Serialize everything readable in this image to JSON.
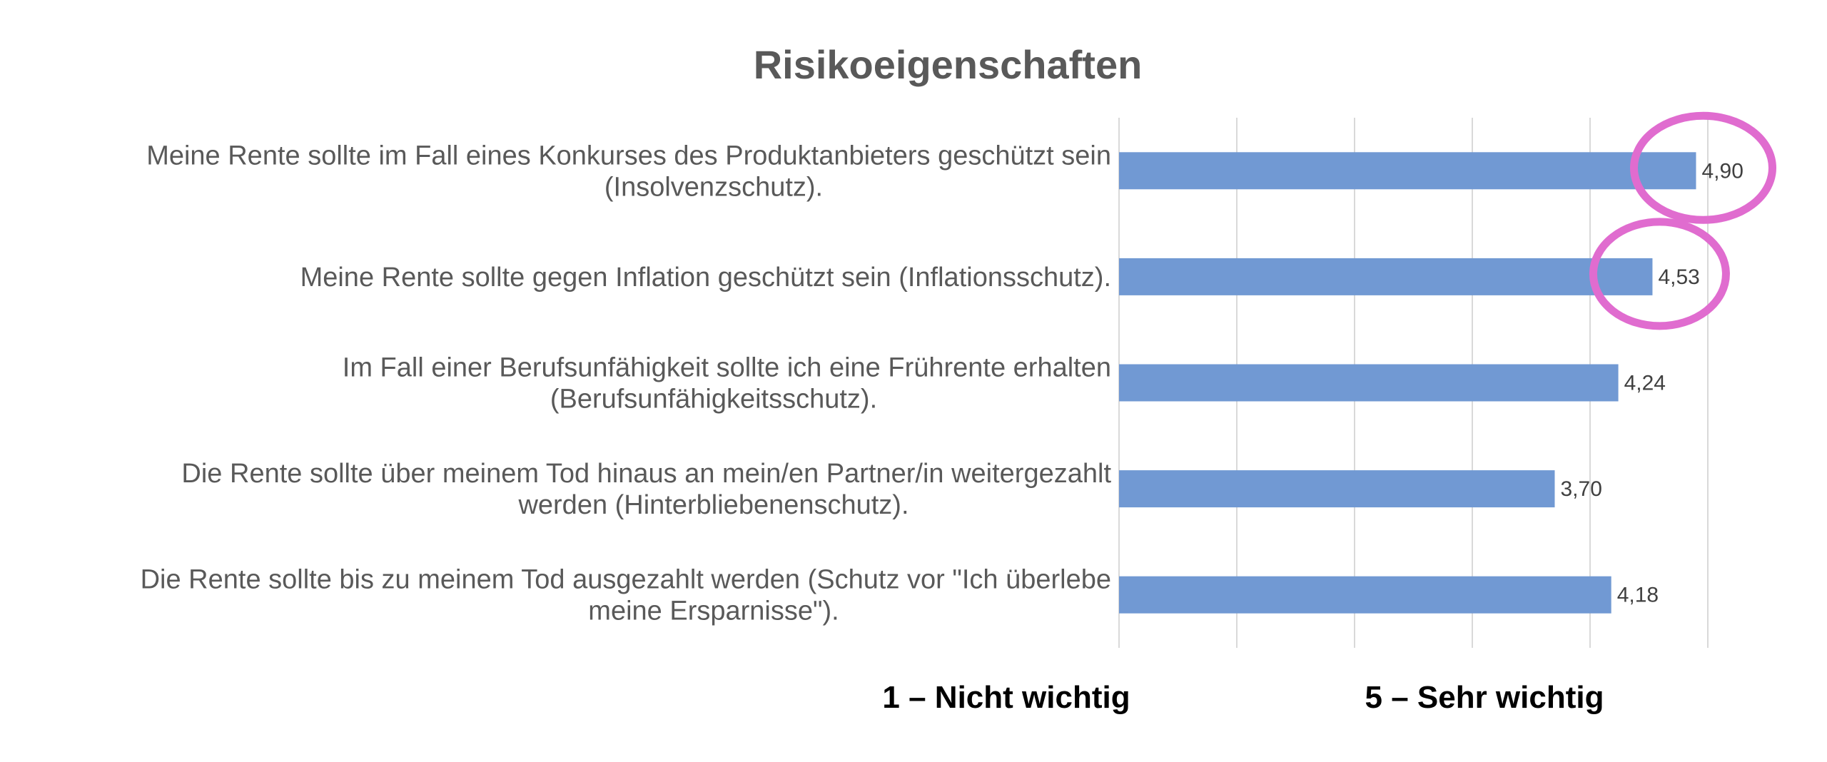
{
  "chart_data": {
    "type": "bar",
    "orientation": "horizontal",
    "title": "Risikoeigenschaften",
    "categories": [
      [
        "Meine Rente sollte im Fall eines Konkurses des Produktanbieters geschützt sein",
        "(Insolvenzschutz)."
      ],
      [
        "Meine Rente sollte gegen Inflation geschützt sein (Inflationsschutz)."
      ],
      [
        "Im Fall einer Berufsunfähigkeit sollte ich eine Frührente erhalten",
        "(Berufsunfähigkeitsschutz)."
      ],
      [
        "Die Rente sollte über meinem Tod hinaus an mein/en Partner/in weitergezahlt",
        "werden (Hinterbliebenenschutz)."
      ],
      [
        "Die Rente sollte bis zu meinem Tod ausgezahlt werden (Schutz vor \"Ich überlebe",
        "meine Ersparnisse\")."
      ]
    ],
    "values": [
      4.9,
      4.53,
      4.24,
      3.7,
      4.18
    ],
    "data_labels": [
      "4,90",
      "4,53",
      "4,24",
      "3,70",
      "4,18"
    ],
    "xlim": [
      0,
      5
    ],
    "grid": true,
    "bar_color": "#7199d3",
    "scale_labels": {
      "low": "1 – Nicht wichtig",
      "high": "5 – Sehr wichtig"
    },
    "highlighted": [
      0,
      1
    ],
    "highlight_color": "#e06ccf"
  }
}
